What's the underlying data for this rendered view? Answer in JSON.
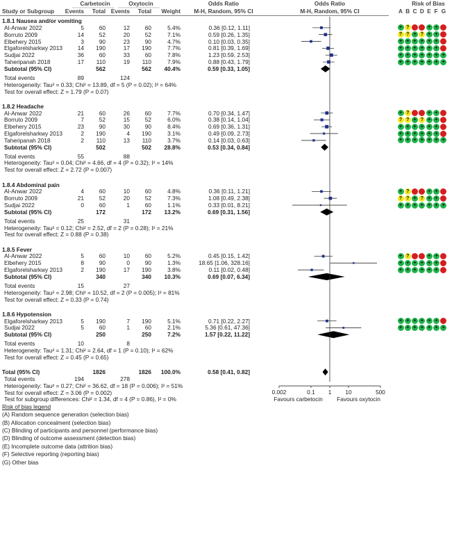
{
  "headers": {
    "study": "Study or Subgroup",
    "exp_group": "Carbetocin",
    "ctl_group": "Oxytocin",
    "events": "Events",
    "total": "Total",
    "weight": "Weight",
    "or_title": "Odds Ratio",
    "or_method": "M-H, Random, 95% CI",
    "plot_title": "Odds Ratio",
    "plot_method": "M-H, Random, 95% CI",
    "rob_title": "Risk of Bias",
    "rob_letters": [
      "A",
      "B",
      "C",
      "D",
      "E",
      "F",
      "G"
    ]
  },
  "labels": {
    "subtotal": "Subtotal (95% CI)",
    "total_events": "Total events"
  },
  "chart_data": {
    "type": "forest",
    "x_scale": "log",
    "xlim": [
      0.002,
      500
    ],
    "x_ticks": [
      "0.002",
      "0.1",
      "1",
      "10",
      "500"
    ],
    "x_tick_values": [
      0.002,
      0.1,
      1,
      10,
      500
    ],
    "left_label": "Favours carbetocin",
    "right_label": "Favours oxytocin",
    "subgroups": [
      {
        "title": "1.8.1 Nausea and/or vomiting",
        "studies": [
          {
            "name": "Al-Anwar 2022",
            "e1": "5",
            "n1": "60",
            "e2": "12",
            "n2": "60",
            "w": "5.4%",
            "ci": "0.36 [0.12, 1.11]",
            "or": 0.36,
            "lo": 0.12,
            "hi": 1.11,
            "rob": [
              "+",
              "?",
              "-",
              "-",
              "+",
              "+",
              "-"
            ]
          },
          {
            "name": "Borruto 2009",
            "e1": "14",
            "n1": "52",
            "e2": "20",
            "n2": "52",
            "w": "7.1%",
            "ci": "0.59 [0.26, 1.35]",
            "or": 0.59,
            "lo": 0.26,
            "hi": 1.35,
            "rob": [
              "?",
              "?",
              "+",
              "?",
              "+",
              "+",
              "-"
            ]
          },
          {
            "name": "Elbehery 2015",
            "e1": "3",
            "n1": "90",
            "e2": "23",
            "n2": "90",
            "w": "4.7%",
            "ci": "0.10 [0.03, 0.35]",
            "or": 0.1,
            "lo": 0.03,
            "hi": 0.35,
            "rob": [
              "+",
              "+",
              "+",
              "+",
              "+",
              "+",
              "-"
            ]
          },
          {
            "name": "Elgaforelsharkwy 2013",
            "e1": "14",
            "n1": "190",
            "e2": "17",
            "n2": "190",
            "w": "7.7%",
            "ci": "0.81 [0.39, 1.69]",
            "or": 0.81,
            "lo": 0.39,
            "hi": 1.69,
            "rob": [
              "+",
              "+",
              "+",
              "+",
              "+",
              "+",
              "-"
            ]
          },
          {
            "name": "Sudjai 2022",
            "e1": "36",
            "n1": "60",
            "e2": "33",
            "n2": "60",
            "w": "7.8%",
            "ci": "1.23 [0.59, 2.53]",
            "or": 1.23,
            "lo": 0.59,
            "hi": 2.53,
            "rob": [
              "+",
              "+",
              "+",
              "+",
              "+",
              "+",
              "+"
            ]
          },
          {
            "name": "Taheripanah 2018",
            "e1": "17",
            "n1": "110",
            "e2": "19",
            "n2": "110",
            "w": "7.9%",
            "ci": "0.88 [0.43, 1.79]",
            "or": 0.88,
            "lo": 0.43,
            "hi": 1.79,
            "rob": [
              "+",
              "+",
              "+",
              "+",
              "+",
              "+",
              "+"
            ]
          }
        ],
        "subtotal": {
          "n1": "562",
          "n2": "562",
          "w": "40.4%",
          "ci": "0.59 [0.33, 1.05]",
          "or": 0.59,
          "lo": 0.33,
          "hi": 1.05
        },
        "events": {
          "e1": "89",
          "e2": "124"
        },
        "heterogeneity": "Heterogeneity: Tau² = 0.33; Chi² = 13.89, df = 5 (P = 0.02); I² = 64%",
        "test": "Test for overall effect: Z = 1.79 (P = 0.07)"
      },
      {
        "title": "1.8.2 Headache",
        "studies": [
          {
            "name": "Al-Anwar 2022",
            "e1": "21",
            "n1": "60",
            "e2": "26",
            "n2": "60",
            "w": "7.7%",
            "ci": "0.70 [0.34, 1.47]",
            "or": 0.7,
            "lo": 0.34,
            "hi": 1.47,
            "rob": [
              "+",
              "?",
              "-",
              "-",
              "+",
              "+",
              "-"
            ]
          },
          {
            "name": "Borruto 2009",
            "e1": "7",
            "n1": "52",
            "e2": "15",
            "n2": "52",
            "w": "6.0%",
            "ci": "0.38 [0.14, 1.04]",
            "or": 0.38,
            "lo": 0.14,
            "hi": 1.04,
            "rob": [
              "?",
              "?",
              "+",
              "?",
              "+",
              "+",
              "-"
            ]
          },
          {
            "name": "Elbehery 2015",
            "e1": "23",
            "n1": "90",
            "e2": "30",
            "n2": "90",
            "w": "8.4%",
            "ci": "0.69 [0.36, 1.31]",
            "or": 0.69,
            "lo": 0.36,
            "hi": 1.31,
            "rob": [
              "+",
              "+",
              "+",
              "+",
              "+",
              "+",
              "-"
            ]
          },
          {
            "name": "Elgaforelsharkwy 2013",
            "e1": "2",
            "n1": "190",
            "e2": "4",
            "n2": "190",
            "w": "3.1%",
            "ci": "0.49 [0.09, 2.73]",
            "or": 0.49,
            "lo": 0.09,
            "hi": 2.73,
            "rob": [
              "+",
              "+",
              "+",
              "+",
              "+",
              "+",
              "-"
            ]
          },
          {
            "name": "Taheripanah 2018",
            "e1": "2",
            "n1": "110",
            "e2": "13",
            "n2": "110",
            "w": "3.7%",
            "ci": "0.14 [0.03, 0.63]",
            "or": 0.14,
            "lo": 0.03,
            "hi": 0.63,
            "rob": [
              "+",
              "+",
              "+",
              "+",
              "+",
              "+",
              "+"
            ]
          }
        ],
        "subtotal": {
          "n1": "502",
          "n2": "502",
          "w": "28.8%",
          "ci": "0.53 [0.34, 0.84]",
          "or": 0.53,
          "lo": 0.34,
          "hi": 0.84
        },
        "events": {
          "e1": "55",
          "e2": "88"
        },
        "heterogeneity": "Heterogeneity: Tau² = 0.04; Chi² = 4.66, df = 4 (P = 0.32); I² = 14%",
        "test": "Test for overall effect: Z = 2.72 (P = 0.007)"
      },
      {
        "title": "1.8.4 Abdominal pain",
        "studies": [
          {
            "name": "Al-Anwar 2022",
            "e1": "4",
            "n1": "60",
            "e2": "10",
            "n2": "60",
            "w": "4.8%",
            "ci": "0.36 [0.11, 1.21]",
            "or": 0.36,
            "lo": 0.11,
            "hi": 1.21,
            "rob": [
              "+",
              "?",
              "-",
              "-",
              "+",
              "+",
              "-"
            ]
          },
          {
            "name": "Borruto 2009",
            "e1": "21",
            "n1": "52",
            "e2": "20",
            "n2": "52",
            "w": "7.3%",
            "ci": "1.08 [0.49, 2.38]",
            "or": 1.08,
            "lo": 0.49,
            "hi": 2.38,
            "rob": [
              "?",
              "?",
              "+",
              "?",
              "+",
              "+",
              "-"
            ]
          },
          {
            "name": "Sudjai 2022",
            "e1": "0",
            "n1": "60",
            "e2": "1",
            "n2": "60",
            "w": "1.1%",
            "ci": "0.33 [0.01, 8.21]",
            "or": 0.33,
            "lo": 0.01,
            "hi": 8.21,
            "rob": [
              "+",
              "+",
              "+",
              "+",
              "+",
              "+",
              "+"
            ]
          }
        ],
        "subtotal": {
          "n1": "172",
          "n2": "172",
          "w": "13.2%",
          "ci": "0.69 [0.31, 1.56]",
          "or": 0.69,
          "lo": 0.31,
          "hi": 1.56
        },
        "events": {
          "e1": "25",
          "e2": "31"
        },
        "heterogeneity": "Heterogeneity: Tau² = 0.12; Chi² = 2.52, df = 2 (P = 0.28); I² = 21%",
        "test": "Test for overall effect: Z = 0.88 (P = 0.38)"
      },
      {
        "title": "1.8.5 Fever",
        "studies": [
          {
            "name": "Al-Anwar 2022",
            "e1": "5",
            "n1": "60",
            "e2": "10",
            "n2": "60",
            "w": "5.2%",
            "ci": "0.45 [0.15, 1.42]",
            "or": 0.45,
            "lo": 0.15,
            "hi": 1.42,
            "rob": [
              "+",
              "?",
              "-",
              "-",
              "+",
              "+",
              "-"
            ]
          },
          {
            "name": "Elbehery 2015",
            "e1": "8",
            "n1": "90",
            "e2": "0",
            "n2": "90",
            "w": "1.3%",
            "ci": "18.65 [1.06, 328.16]",
            "or": 18.65,
            "lo": 1.06,
            "hi": 328.16,
            "rob": [
              "+",
              "+",
              "+",
              "+",
              "+",
              "+",
              "-"
            ]
          },
          {
            "name": "Elgaforelsharkwy 2013",
            "e1": "2",
            "n1": "190",
            "e2": "17",
            "n2": "190",
            "w": "3.8%",
            "ci": "0.11 [0.02, 0.48]",
            "or": 0.11,
            "lo": 0.02,
            "hi": 0.48,
            "rob": [
              "+",
              "+",
              "+",
              "+",
              "+",
              "+",
              "-"
            ]
          }
        ],
        "subtotal": {
          "n1": "340",
          "n2": "340",
          "w": "10.3%",
          "ci": "0.69 [0.07, 6.34]",
          "or": 0.69,
          "lo": 0.07,
          "hi": 6.34
        },
        "events": {
          "e1": "15",
          "e2": "27"
        },
        "heterogeneity": "Heterogeneity: Tau² = 2.98; Chi² = 10.52, df = 2 (P = 0.005); I² = 81%",
        "test": "Test for overall effect: Z = 0.33 (P = 0.74)"
      },
      {
        "title": "1.8.6 Hypotension",
        "studies": [
          {
            "name": "Elgaforelsharkwy 2013",
            "e1": "5",
            "n1": "190",
            "e2": "7",
            "n2": "190",
            "w": "5.1%",
            "ci": "0.71 [0.22, 2.27]",
            "or": 0.71,
            "lo": 0.22,
            "hi": 2.27,
            "rob": [
              "+",
              "+",
              "+",
              "+",
              "+",
              "+",
              "-"
            ]
          },
          {
            "name": "Sudjai 2022",
            "e1": "5",
            "n1": "60",
            "e2": "1",
            "n2": "60",
            "w": "2.1%",
            "ci": "5.36 [0.61, 47.36]",
            "or": 5.36,
            "lo": 0.61,
            "hi": 47.36,
            "rob": [
              "+",
              "+",
              "+",
              "+",
              "+",
              "+",
              "+"
            ]
          }
        ],
        "subtotal": {
          "n1": "250",
          "n2": "250",
          "w": "7.2%",
          "ci": "1.57 [0.22, 11.22]",
          "or": 1.57,
          "lo": 0.22,
          "hi": 11.22
        },
        "events": {
          "e1": "10",
          "e2": "8"
        },
        "heterogeneity": "Heterogeneity: Tau² = 1.31; Chi² = 2.64, df = 1 (P = 0.10); I² = 62%",
        "test": "Test for overall effect: Z = 0.45 (P = 0.65)"
      }
    ],
    "overall": {
      "label": "Total (95% CI)",
      "n1": "1826",
      "n2": "1826",
      "w": "100.0%",
      "ci": "0.58 [0.41, 0.82]",
      "or": 0.58,
      "lo": 0.41,
      "hi": 0.82,
      "events": {
        "e1": "194",
        "e2": "278"
      },
      "heterogeneity": "Heterogeneity: Tau² = 0.27; Chi² = 36.62, df = 18 (P = 0.006); I² = 51%",
      "test": "Test for overall effect: Z = 3.06 (P = 0.002)",
      "subgroup_test": "Test for subgroup differences: Chi² = 1.34, df = 4 (P = 0.86), I² = 0%"
    }
  },
  "legend": {
    "title": "Risk of bias legend",
    "items": [
      "(A) Random sequence generation (selection bias)",
      "(B) Allocation concealment (selection bias)",
      "(C) Blinding of participants and personnel (performance bias)",
      "(D) Blinding of outcome assessment (detection bias)",
      "(E) Incomplete outcome data (attrition bias)",
      "(F) Selective reporting (reporting bias)",
      "(G) Other bias"
    ]
  },
  "colors": {
    "low": "#22b14c",
    "unclear": "#f2e81e",
    "high": "#d41f1f",
    "marker": "#1f2f8f",
    "line": "#333333",
    "header_rule": "#555555"
  }
}
